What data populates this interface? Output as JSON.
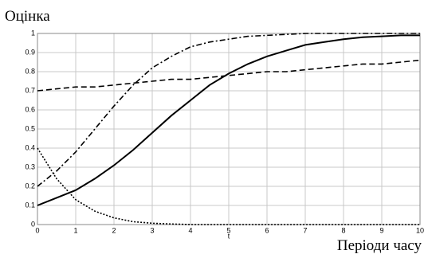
{
  "chart_data": {
    "type": "line",
    "title": "Оцінка",
    "x_label": "t",
    "x_caption": "Періоди часу",
    "x": [
      0,
      0.5,
      1,
      1.5,
      2,
      2.5,
      3,
      3.5,
      4,
      4.5,
      5,
      5.5,
      6,
      6.5,
      7,
      7.5,
      8,
      8.5,
      9,
      9.5,
      10
    ],
    "series": [
      {
        "color": "#000000",
        "dash": "none",
        "values": [
          0.1,
          0.14,
          0.18,
          0.24,
          0.31,
          0.39,
          0.48,
          0.57,
          0.65,
          0.73,
          0.79,
          0.84,
          0.88,
          0.91,
          0.94,
          0.955,
          0.97,
          0.98,
          0.985,
          0.99,
          0.99
        ]
      },
      {
        "color": "#000000",
        "dash": "7,3,2,3",
        "values": [
          0.2,
          0.28,
          0.38,
          0.5,
          0.62,
          0.73,
          0.82,
          0.88,
          0.93,
          0.955,
          0.97,
          0.985,
          0.99,
          0.995,
          1,
          1,
          1,
          1,
          1,
          1,
          1
        ]
      },
      {
        "color": "#000000",
        "dash": "7,4",
        "values": [
          0.7,
          0.71,
          0.72,
          0.72,
          0.73,
          0.74,
          0.75,
          0.76,
          0.76,
          0.77,
          0.78,
          0.79,
          0.8,
          0.8,
          0.81,
          0.82,
          0.83,
          0.84,
          0.84,
          0.85,
          0.86
        ]
      },
      {
        "color": "#000000",
        "dash": "2,2",
        "values": [
          0.4,
          0.24,
          0.13,
          0.07,
          0.035,
          0.015,
          0.007,
          0.003,
          0,
          0,
          0,
          0,
          0,
          0,
          0,
          0,
          0,
          0,
          0,
          0,
          0
        ]
      }
    ],
    "xlim": [
      0,
      10
    ],
    "xticks": [
      0,
      1,
      2,
      3,
      4,
      5,
      6,
      7,
      8,
      9,
      10
    ],
    "ylim": [
      0,
      1
    ],
    "yticks": [
      0,
      0.1,
      0.2,
      0.3,
      0.4,
      0.5,
      0.6,
      0.7,
      0.8,
      0.9,
      1
    ],
    "grid": true
  }
}
